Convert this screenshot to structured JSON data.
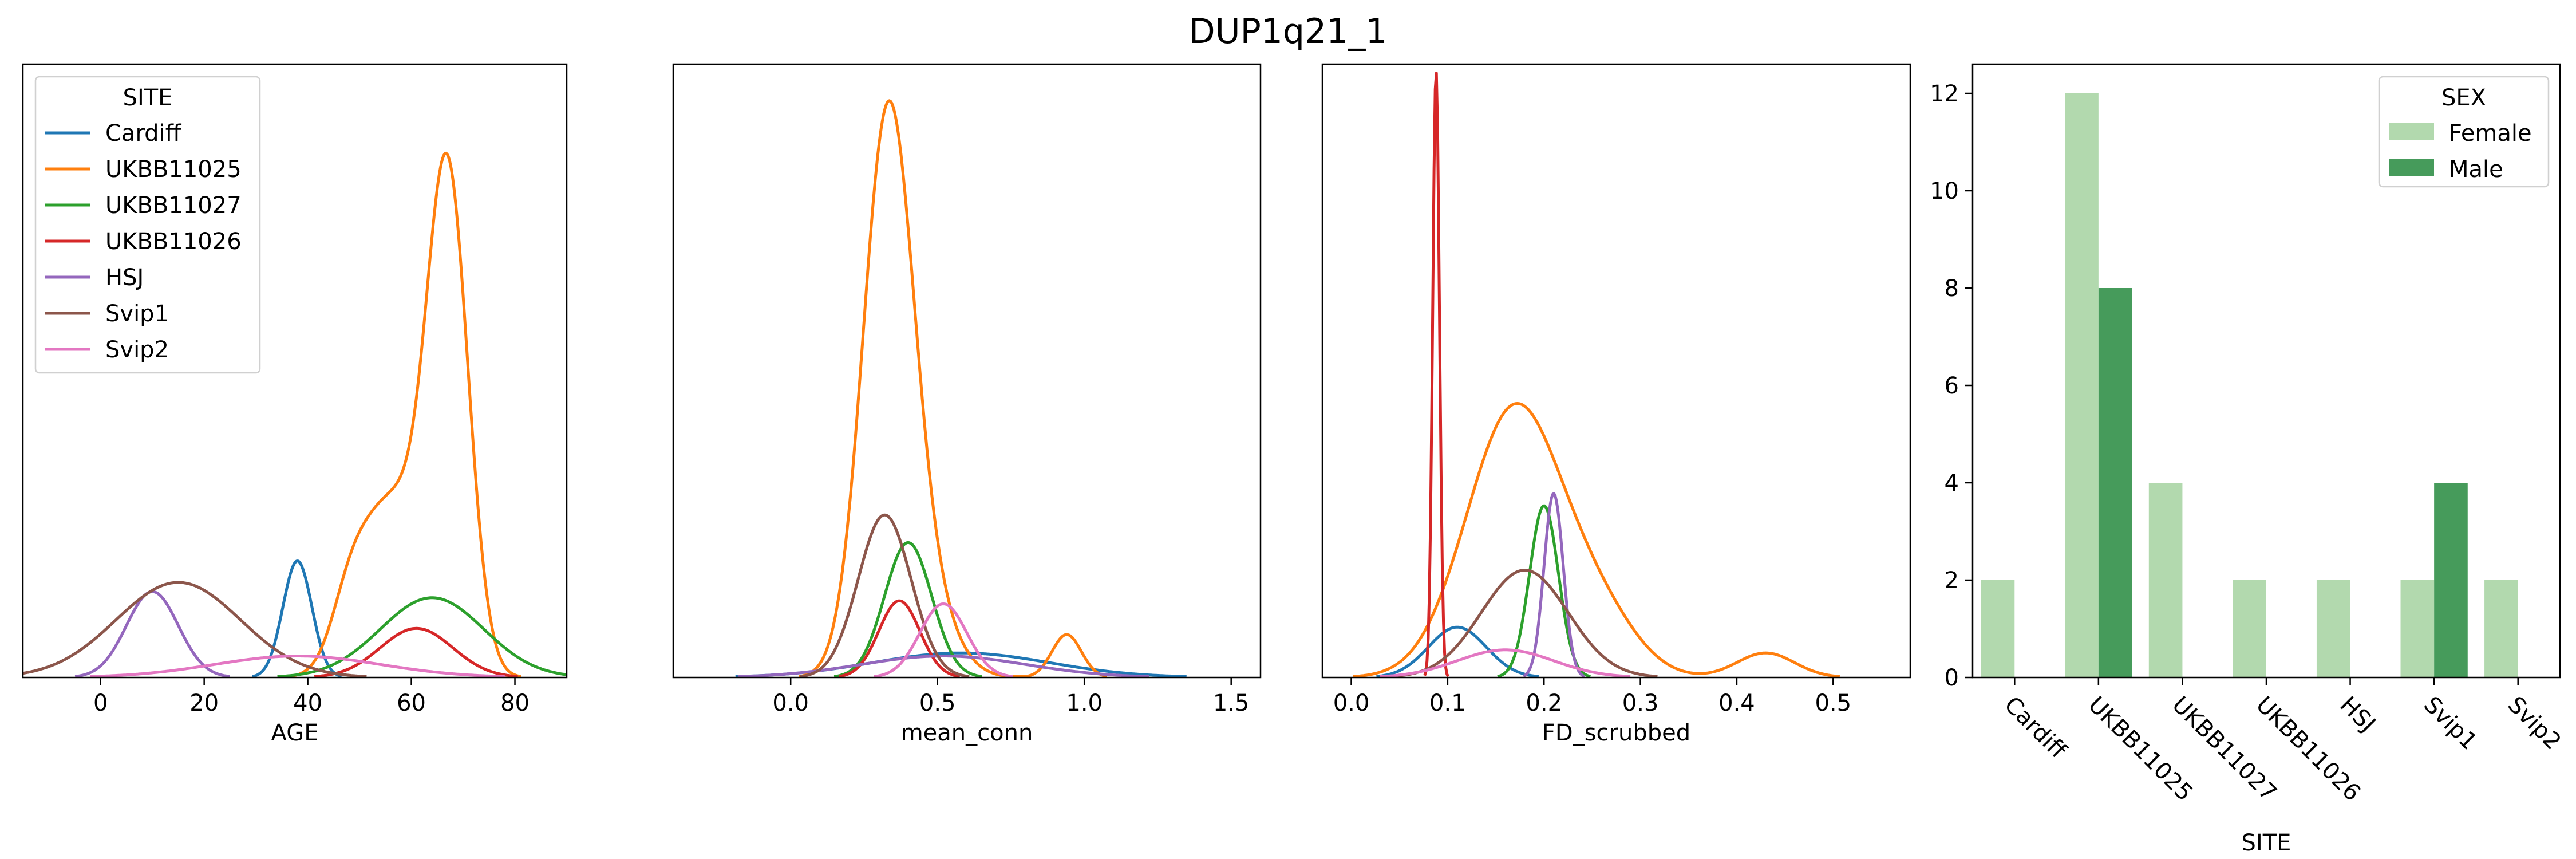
{
  "figure": {
    "title": "DUP1q21_1"
  },
  "colors": {
    "Cardiff": "#1f77b4",
    "UKBB11025": "#ff7f0e",
    "UKBB11027": "#2ca02c",
    "UKBB11026": "#d62728",
    "HSJ": "#9467bd",
    "Svip1": "#8c564b",
    "Svip2": "#e377c2",
    "Female": "#b2d9ae",
    "Male": "#469b5b"
  },
  "chart_data": [
    {
      "type": "line",
      "kind": "kde",
      "xlabel": "AGE",
      "ylabel": "",
      "xlim": [
        -15,
        90
      ],
      "ylim": [
        0,
        1.0
      ],
      "xticks": [
        0,
        20,
        40,
        60,
        80
      ],
      "yticks_visible": false,
      "legend": {
        "title": "SITE",
        "placement": "top-left",
        "entries": [
          "Cardiff",
          "UKBB11025",
          "UKBB11027",
          "UKBB11026",
          "HSJ",
          "Svip1",
          "Svip2"
        ]
      },
      "series": [
        {
          "name": "Cardiff",
          "components": [
            [
              38,
              2.8,
              0.19
            ]
          ]
        },
        {
          "name": "UKBB11025",
          "components": [
            [
              67,
              4.0,
              0.8
            ],
            [
              56,
              6.0,
              0.28
            ],
            [
              48,
              3.5,
              0.08
            ]
          ]
        },
        {
          "name": "UKBB11027",
          "components": [
            [
              64,
              10.0,
              0.13
            ]
          ]
        },
        {
          "name": "UKBB11026",
          "components": [
            [
              61,
              7.0,
              0.08
            ]
          ]
        },
        {
          "name": "HSJ",
          "components": [
            [
              10,
              5.0,
              0.14
            ]
          ]
        },
        {
          "name": "Svip1",
          "components": [
            [
              15,
              12.0,
              0.155
            ]
          ]
        },
        {
          "name": "Svip2",
          "components": [
            [
              38,
              16.0,
              0.035
            ]
          ]
        }
      ]
    },
    {
      "type": "line",
      "kind": "kde",
      "xlabel": "mean_conn",
      "ylabel": "",
      "xlim": [
        -0.4,
        1.6
      ],
      "ylim": [
        0,
        1.0
      ],
      "xticks": [
        0.0,
        0.5,
        1.0,
        1.5
      ],
      "xtick_labels": [
        "0.0",
        "0.5",
        "1.0",
        "1.5"
      ],
      "yticks_visible": false,
      "series": [
        {
          "name": "Cardiff",
          "components": [
            [
              0.58,
              0.3,
              0.04
            ]
          ]
        },
        {
          "name": "UKBB11025",
          "components": [
            [
              0.33,
              0.085,
              0.88
            ],
            [
              0.45,
              0.1,
              0.12
            ],
            [
              0.94,
              0.05,
              0.07
            ]
          ]
        },
        {
          "name": "UKBB11027",
          "components": [
            [
              0.4,
              0.08,
              0.22
            ]
          ]
        },
        {
          "name": "UKBB11026",
          "components": [
            [
              0.37,
              0.07,
              0.125
            ]
          ]
        },
        {
          "name": "HSJ",
          "components": [
            [
              0.52,
              0.28,
              0.035
            ]
          ]
        },
        {
          "name": "Svip1",
          "components": [
            [
              0.32,
              0.09,
              0.265
            ]
          ]
        },
        {
          "name": "Svip2",
          "components": [
            [
              0.52,
              0.08,
              0.12
            ]
          ]
        }
      ]
    },
    {
      "type": "line",
      "kind": "kde",
      "xlabel": "FD_scrubbed",
      "ylabel": "",
      "xlim": [
        -0.03,
        0.58
      ],
      "ylim": [
        0,
        1.0
      ],
      "xticks": [
        0.0,
        0.1,
        0.2,
        0.3,
        0.4,
        0.5
      ],
      "xtick_labels": [
        "0.0",
        "0.1",
        "0.2",
        "0.3",
        "0.4",
        "0.5"
      ],
      "yticks_visible": false,
      "series": [
        {
          "name": "Cardiff",
          "components": [
            [
              0.11,
              0.03,
              0.082
            ]
          ]
        },
        {
          "name": "UKBB11025",
          "components": [
            [
              0.17,
              0.05,
              0.44
            ],
            [
              0.26,
              0.04,
              0.08
            ],
            [
              0.43,
              0.03,
              0.04
            ]
          ]
        },
        {
          "name": "UKBB11027",
          "components": [
            [
              0.2,
              0.015,
              0.28
            ]
          ]
        },
        {
          "name": "UKBB11026",
          "components": [
            [
              0.088,
              0.0035,
              0.99
            ]
          ]
        },
        {
          "name": "HSJ",
          "components": [
            [
              0.21,
              0.01,
              0.3
            ]
          ]
        },
        {
          "name": "Svip1",
          "components": [
            [
              0.18,
              0.045,
              0.175
            ]
          ]
        },
        {
          "name": "Svip2",
          "components": [
            [
              0.16,
              0.05,
              0.045
            ]
          ]
        }
      ]
    },
    {
      "type": "bar",
      "xlabel": "SITE",
      "ylabel": "",
      "categories": [
        "Cardiff",
        "UKBB11025",
        "UKBB11027",
        "UKBB11026",
        "HSJ",
        "Svip1",
        "Svip2"
      ],
      "ylim": [
        0,
        12.6
      ],
      "yticks": [
        0,
        2,
        4,
        6,
        8,
        10,
        12
      ],
      "legend": {
        "title": "SEX",
        "placement": "top-right",
        "entries": [
          "Female",
          "Male"
        ]
      },
      "series": [
        {
          "name": "Female",
          "values": [
            2,
            12,
            4,
            2,
            2,
            2,
            2
          ]
        },
        {
          "name": "Male",
          "values": [
            0,
            8,
            0,
            0,
            0,
            4,
            0
          ]
        }
      ]
    }
  ]
}
